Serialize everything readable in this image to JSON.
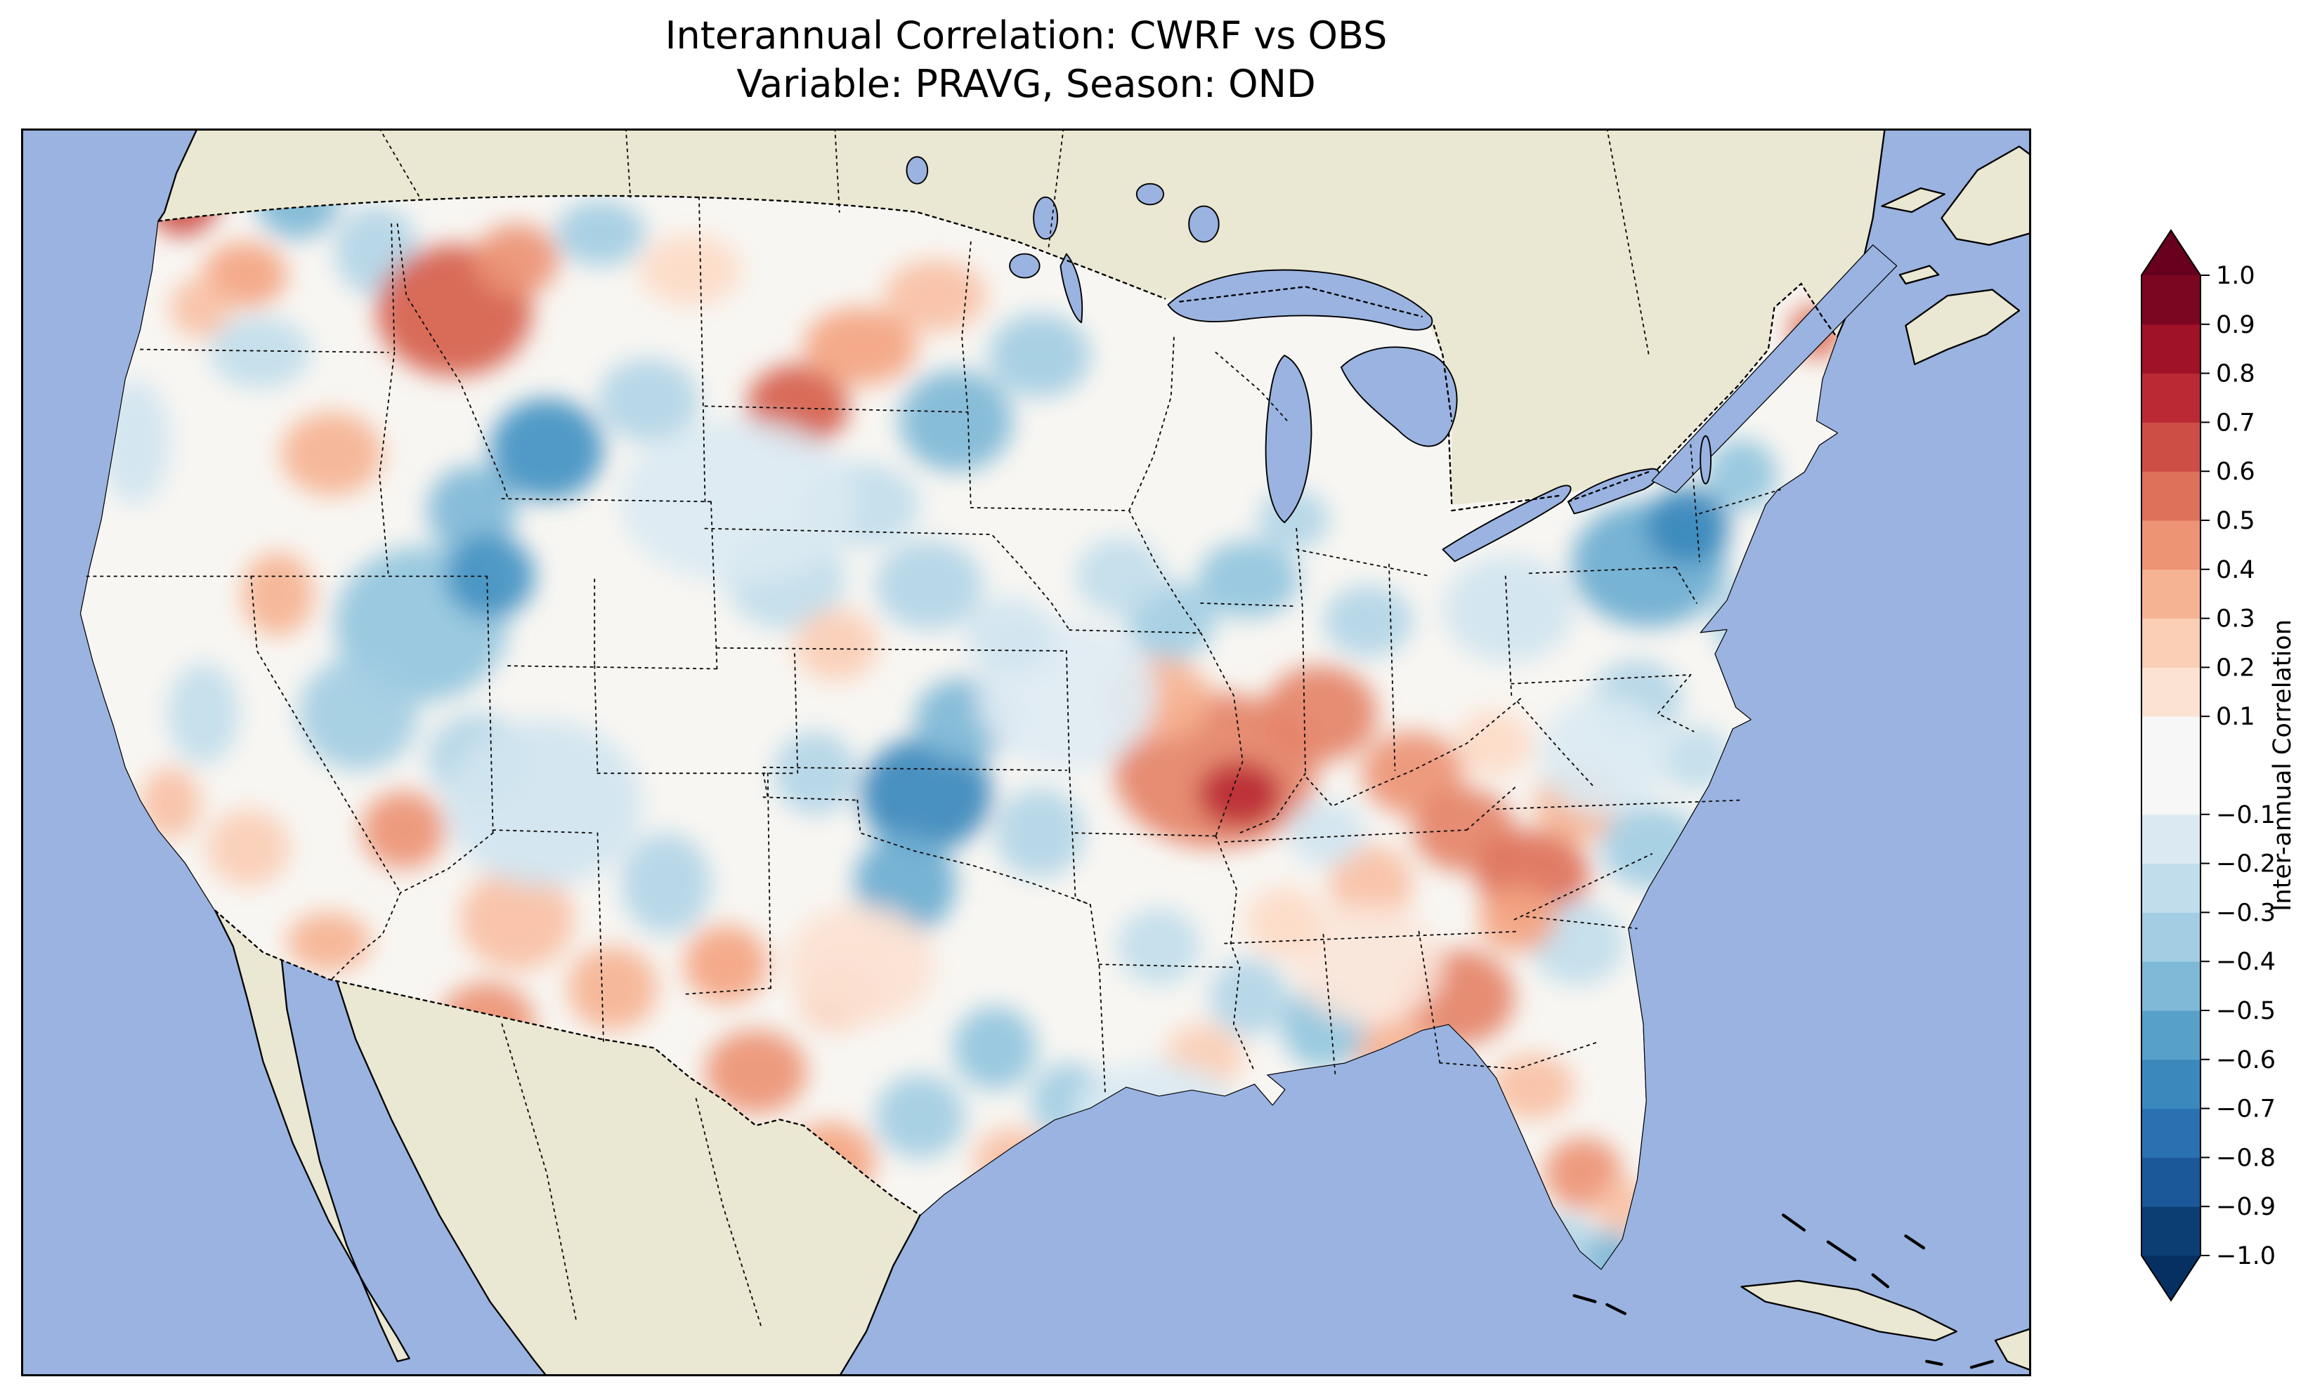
{
  "chart_data": {
    "type": "heatmap",
    "title": "Interannual Correlation: CWRF vs OBS",
    "subtitle": "Variable: PRAVG, Season: OND",
    "variable": "PRAVG",
    "season": "OND",
    "comparison": [
      "CWRF",
      "OBS"
    ],
    "region": "Continental United States",
    "legend_position": "right",
    "colormap": {
      "name": "RdBu_r",
      "stops": [
        {
          "v": -1.0,
          "c": "#053061"
        },
        {
          "v": -0.8,
          "c": "#2166ac"
        },
        {
          "v": -0.6,
          "c": "#4393c3"
        },
        {
          "v": -0.4,
          "c": "#92c5de"
        },
        {
          "v": -0.2,
          "c": "#d1e5f0"
        },
        {
          "v": 0.0,
          "c": "#f7f7f7"
        },
        {
          "v": 0.2,
          "c": "#fddbc7"
        },
        {
          "v": 0.4,
          "c": "#f4a582"
        },
        {
          "v": 0.6,
          "c": "#d6604d"
        },
        {
          "v": 0.8,
          "c": "#b2182b"
        },
        {
          "v": 1.0,
          "c": "#67001f"
        }
      ]
    },
    "colorbar": {
      "label": "Inter-annual Correlation",
      "range": [
        -1.0,
        1.0
      ],
      "extend": "both",
      "levels": [
        -1.0,
        -0.9,
        -0.8,
        -0.7,
        -0.6,
        -0.5,
        -0.4,
        -0.3,
        -0.2,
        -0.1,
        0.1,
        0.2,
        0.3,
        0.4,
        0.5,
        0.6,
        0.7,
        0.8,
        0.9,
        1.0
      ],
      "ticks": [
        {
          "v": 1.0,
          "label": "1.0"
        },
        {
          "v": 0.9,
          "label": "0.9"
        },
        {
          "v": 0.8,
          "label": "0.8"
        },
        {
          "v": 0.7,
          "label": "0.7"
        },
        {
          "v": 0.6,
          "label": "0.6"
        },
        {
          "v": 0.5,
          "label": "0.5"
        },
        {
          "v": 0.4,
          "label": "0.4"
        },
        {
          "v": 0.3,
          "label": "0.3"
        },
        {
          "v": 0.2,
          "label": "0.2"
        },
        {
          "v": 0.1,
          "label": "0.1"
        },
        {
          "v": -0.1,
          "label": "−0.1"
        },
        {
          "v": -0.2,
          "label": "−0.2"
        },
        {
          "v": -0.3,
          "label": "−0.3"
        },
        {
          "v": -0.4,
          "label": "−0.4"
        },
        {
          "v": -0.5,
          "label": "−0.5"
        },
        {
          "v": -0.6,
          "label": "−0.6"
        },
        {
          "v": -0.7,
          "label": "−0.7"
        },
        {
          "v": -0.8,
          "label": "−0.8"
        },
        {
          "v": -0.9,
          "label": "−0.9"
        },
        {
          "v": -1.0,
          "label": "−1.0"
        }
      ]
    },
    "map_colors": {
      "ocean": "#9ab3e1",
      "land": "#eae7d2",
      "field_base": "#f8f6f2",
      "coast": "#000000"
    },
    "blob_format": [
      "x",
      "y",
      "rx",
      "ry",
      "r"
    ],
    "field_blobs": [
      [
        108,
        42,
        26,
        30,
        0.65
      ],
      [
        150,
        98,
        28,
        22,
        0.4
      ],
      [
        185,
        48,
        28,
        26,
        -0.45
      ],
      [
        238,
        82,
        28,
        30,
        -0.3
      ],
      [
        160,
        150,
        34,
        24,
        -0.25
      ],
      [
        76,
        210,
        24,
        42,
        -0.2
      ],
      [
        208,
        218,
        34,
        28,
        0.35
      ],
      [
        120,
        120,
        20,
        20,
        0.3
      ],
      [
        290,
        122,
        52,
        44,
        0.6
      ],
      [
        332,
        88,
        28,
        24,
        0.45
      ],
      [
        388,
        70,
        30,
        22,
        -0.35
      ],
      [
        448,
        95,
        34,
        24,
        0.2
      ],
      [
        352,
        215,
        38,
        34,
        -0.6
      ],
      [
        302,
        256,
        30,
        30,
        -0.45
      ],
      [
        420,
        182,
        34,
        28,
        -0.3
      ],
      [
        268,
        332,
        58,
        52,
        -0.4
      ],
      [
        314,
        300,
        30,
        28,
        -0.6
      ],
      [
        226,
        392,
        40,
        38,
        -0.35
      ],
      [
        306,
        422,
        34,
        30,
        -0.3
      ],
      [
        172,
        312,
        24,
        28,
        0.35
      ],
      [
        122,
        392,
        24,
        34,
        -0.25
      ],
      [
        100,
        452,
        20,
        24,
        0.3
      ],
      [
        152,
        482,
        28,
        26,
        0.25
      ],
      [
        256,
        470,
        28,
        26,
        0.45
      ],
      [
        206,
        545,
        28,
        20,
        0.35
      ],
      [
        332,
        530,
        38,
        34,
        0.3
      ],
      [
        312,
        600,
        32,
        28,
        0.45
      ],
      [
        396,
        576,
        30,
        28,
        0.35
      ],
      [
        432,
        506,
        30,
        34,
        -0.3
      ],
      [
        472,
        560,
        28,
        26,
        0.4
      ],
      [
        520,
        186,
        34,
        28,
        0.6
      ],
      [
        562,
        146,
        38,
        26,
        0.4
      ],
      [
        612,
        112,
        34,
        24,
        0.3
      ],
      [
        626,
        196,
        38,
        34,
        -0.45
      ],
      [
        682,
        152,
        34,
        28,
        -0.35
      ],
      [
        562,
        252,
        40,
        28,
        -0.25
      ],
      [
        512,
        302,
        40,
        34,
        -0.25
      ],
      [
        546,
        346,
        28,
        24,
        0.25
      ],
      [
        480,
        250,
        80,
        55,
        -0.15
      ],
      [
        606,
        446,
        44,
        38,
        -0.65
      ],
      [
        632,
        396,
        34,
        28,
        -0.45
      ],
      [
        592,
        506,
        34,
        34,
        -0.5
      ],
      [
        532,
        432,
        28,
        28,
        -0.3
      ],
      [
        682,
        472,
        30,
        30,
        -0.3
      ],
      [
        350,
        452,
        66,
        56,
        -0.2
      ],
      [
        492,
        632,
        34,
        28,
        0.45
      ],
      [
        542,
        692,
        30,
        26,
        0.4
      ],
      [
        602,
        662,
        30,
        28,
        -0.35
      ],
      [
        652,
        616,
        28,
        28,
        -0.4
      ],
      [
        592,
        762,
        26,
        22,
        0.45
      ],
      [
        664,
        692,
        26,
        22,
        0.3
      ],
      [
        702,
        652,
        26,
        26,
        -0.35
      ],
      [
        548,
        582,
        28,
        22,
        0.3
      ],
      [
        562,
        560,
        50,
        40,
        0.15
      ],
      [
        800,
        430,
        68,
        52,
        0.5
      ],
      [
        816,
        446,
        28,
        22,
        0.75
      ],
      [
        870,
        392,
        38,
        32,
        0.5
      ],
      [
        762,
        382,
        34,
        28,
        0.35
      ],
      [
        770,
        330,
        30,
        26,
        -0.35
      ],
      [
        822,
        302,
        34,
        26,
        -0.4
      ],
      [
        902,
        330,
        30,
        24,
        -0.3
      ],
      [
        852,
        262,
        24,
        20,
        -0.3
      ],
      [
        932,
        432,
        34,
        28,
        0.45
      ],
      [
        966,
        470,
        34,
        28,
        0.5
      ],
      [
        1012,
        500,
        38,
        30,
        0.55
      ],
      [
        1042,
        452,
        28,
        26,
        0.35
      ],
      [
        904,
        506,
        28,
        26,
        0.3
      ],
      [
        700,
        380,
        60,
        50,
        -0.12
      ],
      [
        1090,
        292,
        52,
        42,
        -0.5
      ],
      [
        1116,
        266,
        28,
        26,
        -0.65
      ],
      [
        1162,
        332,
        28,
        28,
        -0.35
      ],
      [
        1202,
        136,
        18,
        18,
        0.55
      ],
      [
        1152,
        232,
        24,
        24,
        -0.4
      ],
      [
        1082,
        382,
        30,
        26,
        -0.3
      ],
      [
        1122,
        422,
        24,
        22,
        -0.25
      ],
      [
        1060,
        420,
        44,
        40,
        -0.15
      ],
      [
        1092,
        482,
        34,
        28,
        -0.35
      ],
      [
        1042,
        546,
        32,
        28,
        -0.25
      ],
      [
        1002,
        530,
        26,
        22,
        0.4
      ],
      [
        962,
        582,
        38,
        32,
        0.5
      ],
      [
        922,
        622,
        28,
        26,
        0.35
      ],
      [
        872,
        602,
        28,
        28,
        -0.4
      ],
      [
        822,
        582,
        26,
        26,
        -0.3
      ],
      [
        762,
        548,
        28,
        26,
        -0.25
      ],
      [
        792,
        622,
        26,
        22,
        0.25
      ],
      [
        1012,
        642,
        28,
        22,
        0.3
      ],
      [
        1046,
        700,
        26,
        24,
        0.45
      ],
      [
        1032,
        748,
        24,
        20,
        -0.3
      ],
      [
        1066,
        762,
        20,
        24,
        -0.45
      ],
      [
        1072,
        722,
        18,
        18,
        0.3
      ],
      [
        1078,
        798,
        14,
        16,
        0.3
      ],
      [
        902,
        560,
        50,
        40,
        0.12
      ],
      [
        760,
        660,
        55,
        35,
        -0.15
      ],
      [
        996,
        322,
        44,
        36,
        -0.2
      ],
      [
        608,
        306,
        36,
        30,
        -0.3
      ],
      [
        662,
        340,
        30,
        26,
        -0.2
      ],
      [
        736,
        300,
        30,
        26,
        -0.25
      ],
      [
        874,
        472,
        26,
        22,
        -0.2
      ],
      [
        846,
        532,
        26,
        24,
        0.2
      ],
      [
        986,
        412,
        26,
        22,
        0.2
      ]
    ]
  }
}
